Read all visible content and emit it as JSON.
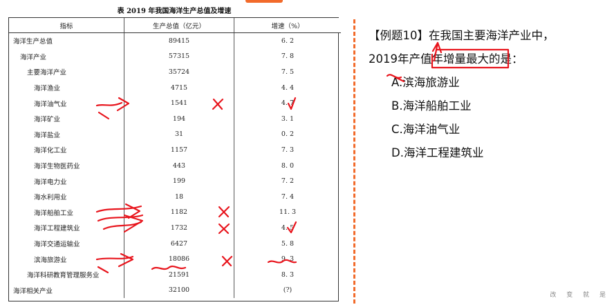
{
  "table": {
    "title": "表 2019 年我国海洋生产总值及增速",
    "headers": [
      "指标",
      "生产总值（亿元）",
      "增速（%）"
    ],
    "rows": [
      {
        "name": "海洋生产总值",
        "value": "89415",
        "growth": "6. 2",
        "level": 0
      },
      {
        "name": "海洋产业",
        "value": "57315",
        "growth": "7. 8",
        "level": 1
      },
      {
        "name": "主要海洋产业",
        "value": "35724",
        "growth": "7. 5",
        "level": 2
      },
      {
        "name": "海洋渔业",
        "value": "4715",
        "growth": "4. 4",
        "level": 3
      },
      {
        "name": "海洋油气业",
        "value": "1541",
        "growth": "4. 7",
        "level": 3
      },
      {
        "name": "海洋矿业",
        "value": "194",
        "growth": "3. 1",
        "level": 3
      },
      {
        "name": "海洋盐业",
        "value": "31",
        "growth": "0. 2",
        "level": 3
      },
      {
        "name": "海洋化工业",
        "value": "1157",
        "growth": "7. 3",
        "level": 3
      },
      {
        "name": "海洋生物医药业",
        "value": "443",
        "growth": "8. 0",
        "level": 3
      },
      {
        "name": "海洋电力业",
        "value": "199",
        "growth": "7. 2",
        "level": 3
      },
      {
        "name": "海水利用业",
        "value": "18",
        "growth": "7. 4",
        "level": 3
      },
      {
        "name": "海洋船舶工业",
        "value": "1182",
        "growth": "11. 3",
        "level": 3
      },
      {
        "name": "海洋工程建筑业",
        "value": "1732",
        "growth": "4. 5",
        "level": 3
      },
      {
        "name": "海洋交通运输业",
        "value": "6427",
        "growth": "5. 8",
        "level": 3
      },
      {
        "name": "滨海旅游业",
        "value": "18086",
        "growth": "9. 3",
        "level": 3
      },
      {
        "name": "海洋科研教育管理服务业",
        "value": "21591",
        "growth": "8. 3",
        "level": 4
      },
      {
        "name": "海洋相关产业",
        "value": "32100",
        "growth": "(?)",
        "level": 0
      }
    ]
  },
  "question": {
    "line1": "【例题10】在我国主要海洋产业中，",
    "line2": "2019年产值年增量最大的是：",
    "options": [
      "A.滨海旅游业",
      "B.海洋船舶工业",
      "C.海洋油气业",
      "D.海洋工程建筑业"
    ]
  },
  "footer": "改 变 就 是",
  "colors": {
    "accent": "#f26a2a",
    "ink": "#e8141c"
  }
}
